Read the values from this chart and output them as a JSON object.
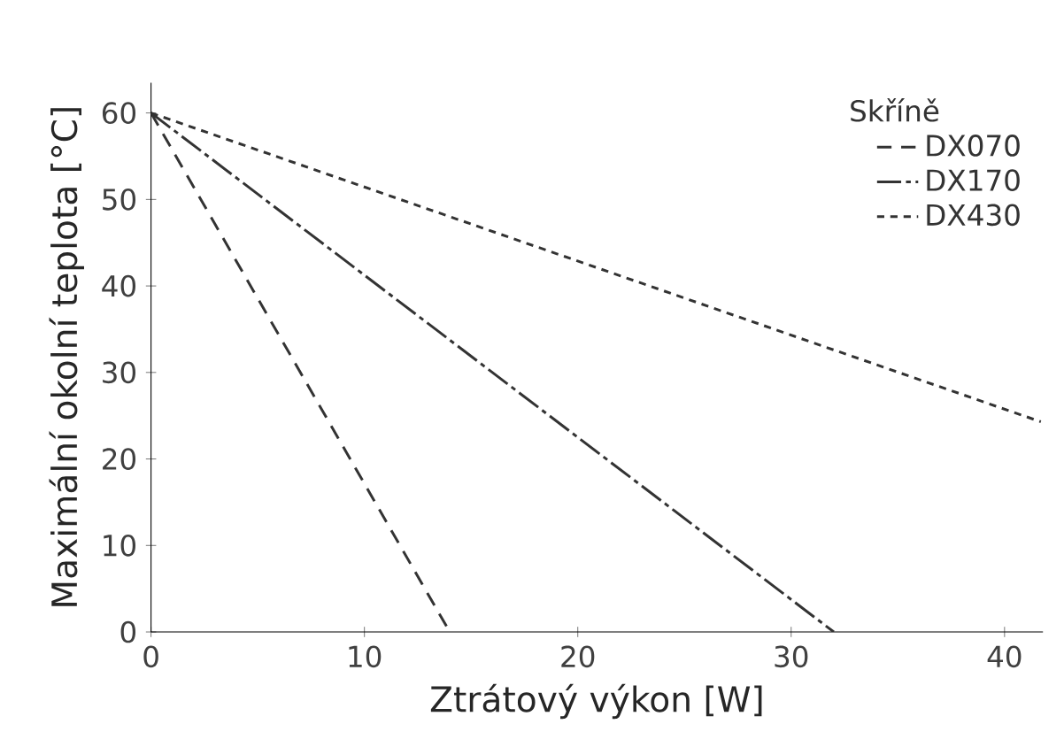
{
  "chart_data": {
    "type": "line",
    "xlabel": "Ztrátový výkon [W]",
    "ylabel": "Maximální okolní teplota [°C]",
    "legend_title": "Skříně",
    "legend": "top right",
    "xlim": [
      0,
      41.8
    ],
    "ylim": [
      0,
      63.5
    ],
    "xticks": [
      0,
      10,
      20,
      30,
      40
    ],
    "yticks": [
      0,
      10,
      20,
      30,
      40,
      50,
      60
    ],
    "grid": false,
    "marker": "none",
    "series": [
      {
        "name": "DX070",
        "color": "#333333",
        "line_style": "dashed",
        "x": [
          0,
          14
        ],
        "values": [
          60,
          0
        ]
      },
      {
        "name": "DX170",
        "color": "#333333",
        "line_style": "dashdot",
        "x": [
          0,
          32
        ],
        "values": [
          60,
          0
        ]
      },
      {
        "name": "DX430",
        "color": "#333333",
        "line_style": "dotted",
        "x": [
          0,
          41.7
        ],
        "values": [
          60,
          24.3
        ]
      }
    ]
  }
}
